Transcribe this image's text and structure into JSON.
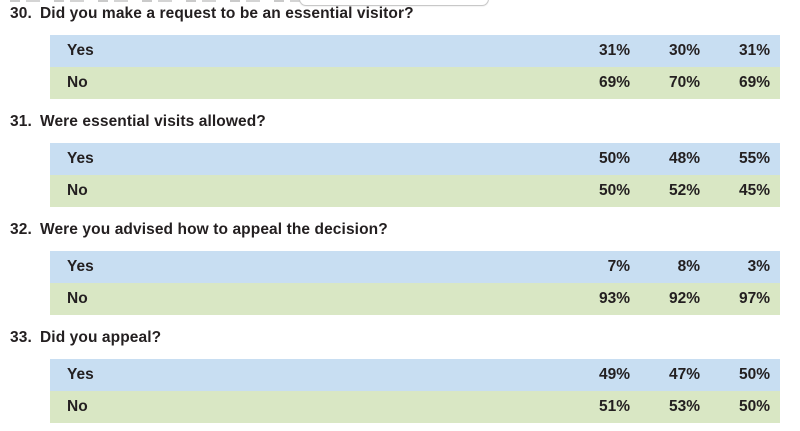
{
  "colors": {
    "yes_row": "#c8def2",
    "no_row": "#d9e7c4",
    "text": "#231f20"
  },
  "questions": [
    {
      "number": "30.",
      "text": "Did you make a request to be an essential visitor?",
      "rows": [
        {
          "label": "Yes",
          "values": [
            "31%",
            "30%",
            "31%"
          ]
        },
        {
          "label": "No",
          "values": [
            "69%",
            "70%",
            "69%"
          ]
        }
      ]
    },
    {
      "number": "31.",
      "text": "Were essential visits allowed?",
      "rows": [
        {
          "label": "Yes",
          "values": [
            "50%",
            "48%",
            "55%"
          ]
        },
        {
          "label": "No",
          "values": [
            "50%",
            "52%",
            "45%"
          ]
        }
      ]
    },
    {
      "number": "32.",
      "text": "Were you advised how to appeal the decision?",
      "rows": [
        {
          "label": "Yes",
          "values": [
            "7%",
            "8%",
            "3%"
          ]
        },
        {
          "label": "No",
          "values": [
            "93%",
            "92%",
            "97%"
          ]
        }
      ]
    },
    {
      "number": "33.",
      "text": "Did you appeal?",
      "rows": [
        {
          "label": "Yes",
          "values": [
            "49%",
            "47%",
            "50%"
          ]
        },
        {
          "label": "No",
          "values": [
            "51%",
            "53%",
            "50%"
          ]
        }
      ]
    }
  ]
}
